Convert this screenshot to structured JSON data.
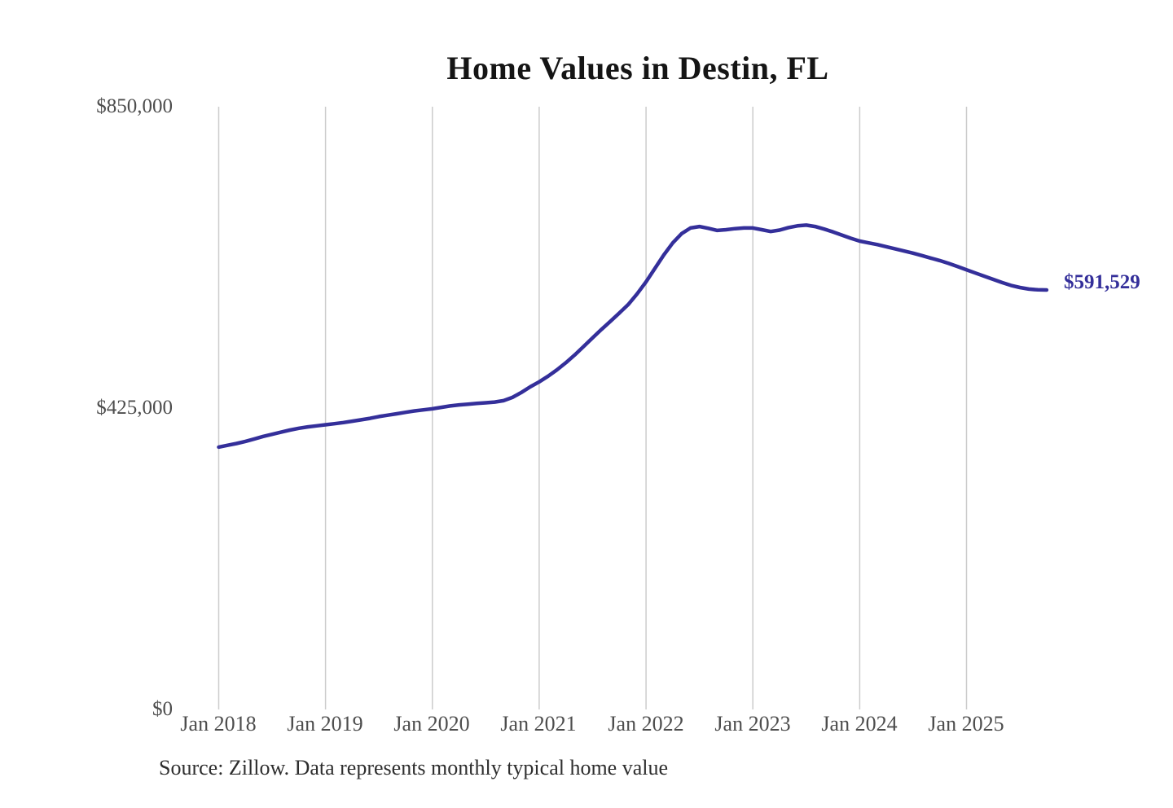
{
  "title": "Home Values in Destin, FL",
  "source_note": "Source: Zillow. Data represents monthly typical home value",
  "colors": {
    "line": "#342f9a",
    "grid": "#cccccc",
    "axis_text": "#4d4d4d",
    "end_label": "#342f9a"
  },
  "chart_data": {
    "type": "line",
    "title": "Home Values in Destin, FL",
    "xlabel": "",
    "ylabel": "",
    "ylim": [
      0,
      850000
    ],
    "grid": "vertical-only",
    "legend": "none",
    "x_ticks": [
      "Jan 2018",
      "Jan 2019",
      "Jan 2020",
      "Jan 2021",
      "Jan 2022",
      "Jan 2023",
      "Jan 2024",
      "Jan 2025"
    ],
    "y_ticks": [
      {
        "label": "$850,000",
        "value": 850000
      },
      {
        "label": "$425,000",
        "value": 425000
      },
      {
        "label": "$0",
        "value": 0
      }
    ],
    "end_label": "$591,529",
    "series": [
      {
        "name": "Monthly typical home value",
        "start_month": "2018-01",
        "end_month": "2025-10",
        "interval": "monthly",
        "final_value": 591529,
        "values": [
          370000,
          372500,
          375000,
          378000,
          381500,
          385000,
          388000,
          391000,
          394000,
          396500,
          398500,
          400000,
          401500,
          403000,
          404500,
          406500,
          408500,
          410500,
          413000,
          415000,
          417000,
          419000,
          421000,
          422500,
          424000,
          426000,
          428000,
          429500,
          430500,
          431500,
          432500,
          433500,
          435500,
          440000,
          447000,
          455000,
          462000,
          470000,
          479000,
          489000,
          500000,
          512000,
          524000,
          536000,
          547500,
          559000,
          571000,
          586000,
          603000,
          622000,
          641000,
          658000,
          671000,
          679000,
          681000,
          678500,
          675500,
          676500,
          678000,
          679000,
          679000,
          676500,
          674000,
          676000,
          679500,
          682000,
          683000,
          681000,
          677500,
          673500,
          669000,
          664500,
          660500,
          658000,
          655500,
          652500,
          649500,
          646500,
          643500,
          640000,
          636500,
          633000,
          629000,
          624500,
          620000,
          615500,
          611000,
          606500,
          602000,
          598000,
          595000,
          592800,
          591800,
          591529
        ]
      }
    ]
  }
}
